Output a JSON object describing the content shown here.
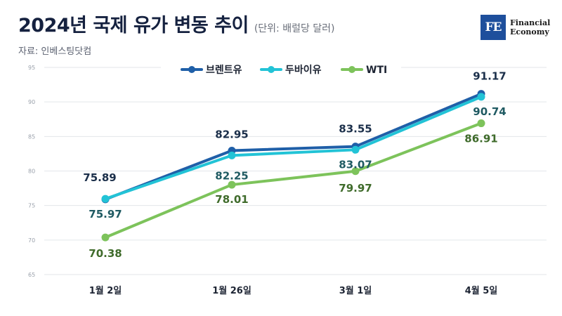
{
  "header": {
    "title": "2024년 국제 유가 변동 추이",
    "unit": "(단위: 배럴당 달러)",
    "source": "자료: 인베스팅닷컴"
  },
  "logo": {
    "mark": "FE",
    "line1": "Financial",
    "line2": "Economy"
  },
  "chart_data": {
    "type": "line",
    "categories": [
      "1월 2일",
      "1월 26일",
      "3월 1일",
      "4월 5일"
    ],
    "ylim": [
      65,
      95
    ],
    "yticks": [
      "95",
      "90",
      "85",
      "80",
      "75",
      "70",
      "65"
    ],
    "grid": true,
    "legend_position": "top-center",
    "series": [
      {
        "name": "브렌트유",
        "color": "#1f5fa8",
        "values": [
          75.89,
          82.95,
          83.55,
          91.17
        ],
        "labels": [
          "75.89",
          "82.95",
          "83.55",
          "91.17"
        ],
        "label_color": "#1b2f4a"
      },
      {
        "name": "두바이유",
        "color": "#22c3d6",
        "values": [
          75.97,
          82.25,
          83.07,
          90.74
        ],
        "labels": [
          "75.97",
          "82.25",
          "83.07",
          "90.74"
        ],
        "label_color": "#1f5a62"
      },
      {
        "name": "WTI",
        "color": "#7dc35b",
        "values": [
          70.38,
          78.01,
          79.97,
          86.91
        ],
        "labels": [
          "70.38",
          "78.01",
          "79.97",
          "86.91"
        ],
        "label_color": "#3f6b2b"
      }
    ]
  }
}
